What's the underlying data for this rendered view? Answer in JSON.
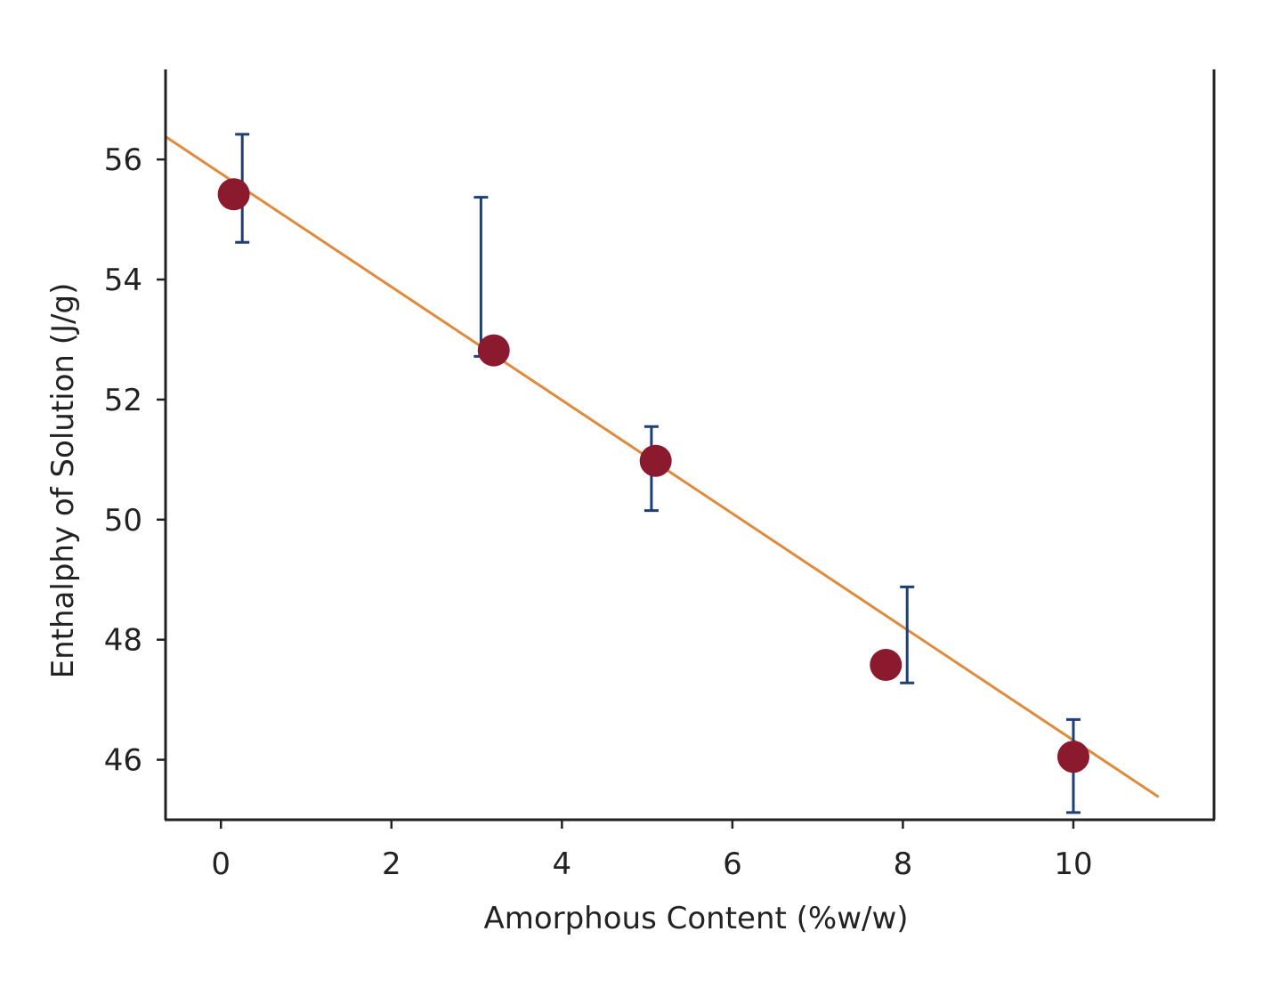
{
  "chart_data": {
    "type": "scatter",
    "title": "",
    "xlabel": "Amorphous Content (%w/w)",
    "ylabel": "Enthalphy of Solution (J/g)",
    "xlim": [
      -0.65,
      11.65
    ],
    "ylim": [
      45.0,
      57.5
    ],
    "xticks": [
      0,
      2,
      4,
      6,
      8,
      10
    ],
    "yticks": [
      46,
      48,
      50,
      52,
      54,
      56
    ],
    "grid": false,
    "legend": "none",
    "points": [
      {
        "x": 0.15,
        "y": 55.42,
        "err_x": 0.25,
        "err_low": 54.62,
        "err_high": 56.42
      },
      {
        "x": 3.2,
        "y": 52.82,
        "err_x": 3.05,
        "err_low": 52.72,
        "err_high": 55.37
      },
      {
        "x": 5.1,
        "y": 50.98,
        "err_x": 5.05,
        "err_low": 50.15,
        "err_high": 51.55
      },
      {
        "x": 7.8,
        "y": 47.58,
        "err_x": 8.05,
        "err_low": 47.28,
        "err_high": 48.88
      },
      {
        "x": 10.0,
        "y": 46.05,
        "err_x": 10.0,
        "err_low": 45.12,
        "err_high": 46.67
      }
    ],
    "fit_line": {
      "x": [
        -0.65,
        11.0
      ],
      "y": [
        56.38,
        45.38
      ]
    },
    "colors": {
      "point": "#8b1a2e",
      "error_bar": "#1f3f74",
      "fit_line": "#e08a3c",
      "axis": "#222222"
    }
  }
}
